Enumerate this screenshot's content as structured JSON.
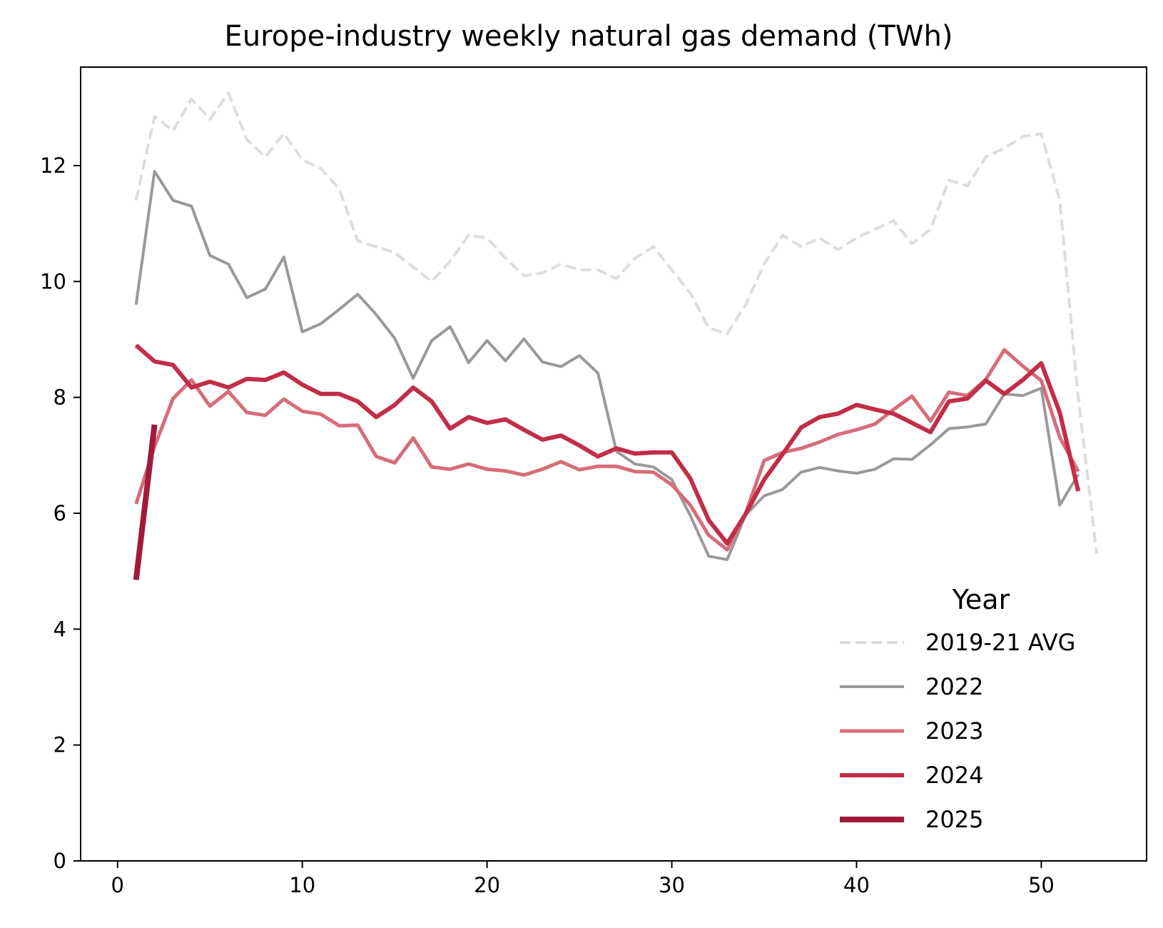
{
  "chart_data": {
    "type": "line",
    "title": "Europe-industry weekly natural gas demand (TWh)",
    "xlabel": "",
    "ylabel": "",
    "xlim": [
      -2,
      55.7
    ],
    "ylim": [
      0,
      13.7
    ],
    "xticks": [
      0,
      10,
      20,
      30,
      40,
      50
    ],
    "yticks": [
      0,
      2,
      4,
      6,
      8,
      10,
      12
    ],
    "grid": false,
    "legend": {
      "title": "Year",
      "position": "lower-right"
    },
    "series": [
      {
        "name": "2019-21 AVG",
        "color": "#dddddd",
        "dashed": true,
        "width": 4,
        "x": [
          1,
          2,
          3,
          4,
          5,
          6,
          7,
          8,
          9,
          10,
          11,
          12,
          13,
          14,
          15,
          16,
          17,
          18,
          19,
          20,
          21,
          22,
          23,
          24,
          25,
          26,
          27,
          28,
          29,
          30,
          31,
          32,
          33,
          34,
          35,
          36,
          37,
          38,
          39,
          40,
          41,
          42,
          43,
          44,
          45,
          46,
          47,
          48,
          49,
          50,
          51,
          52,
          53
        ],
        "y": [
          11.4,
          12.85,
          12.6,
          13.15,
          12.8,
          13.25,
          12.45,
          12.15,
          12.55,
          12.1,
          11.95,
          11.6,
          10.7,
          10.6,
          10.5,
          10.25,
          10.0,
          10.35,
          10.8,
          10.75,
          10.4,
          10.1,
          10.15,
          10.3,
          10.2,
          10.2,
          10.05,
          10.4,
          10.6,
          10.2,
          9.8,
          9.2,
          9.1,
          9.6,
          10.3,
          10.8,
          10.6,
          10.75,
          10.55,
          10.75,
          10.9,
          11.05,
          10.65,
          10.9,
          11.75,
          11.65,
          12.15,
          12.3,
          12.5,
          12.55,
          11.4,
          8.0,
          5.3
        ]
      },
      {
        "name": "2022",
        "color": "#999999",
        "dashed": false,
        "width": 4,
        "x": [
          1,
          2,
          3,
          4,
          5,
          6,
          7,
          8,
          9,
          10,
          11,
          12,
          13,
          14,
          15,
          16,
          17,
          18,
          19,
          20,
          21,
          22,
          23,
          24,
          25,
          26,
          27,
          28,
          29,
          30,
          31,
          32,
          33,
          34,
          35,
          36,
          37,
          38,
          39,
          40,
          41,
          42,
          43,
          44,
          45,
          46,
          47,
          48,
          49,
          50,
          51,
          52
        ],
        "y": [
          9.6,
          11.9,
          11.4,
          11.3,
          10.45,
          10.3,
          9.72,
          9.87,
          10.42,
          9.13,
          9.27,
          9.52,
          9.78,
          9.43,
          9.02,
          8.33,
          8.98,
          9.22,
          8.6,
          8.98,
          8.63,
          9.01,
          8.61,
          8.53,
          8.72,
          8.42,
          7.07,
          6.85,
          6.8,
          6.58,
          5.96,
          5.26,
          5.2,
          5.97,
          6.3,
          6.41,
          6.71,
          6.79,
          6.73,
          6.69,
          6.76,
          6.94,
          6.93,
          7.18,
          7.46,
          7.49,
          7.54,
          8.06,
          8.03,
          8.16,
          6.14,
          6.67
        ]
      },
      {
        "name": "2023",
        "color": "#d66d79",
        "dashed": false,
        "width": 5,
        "x": [
          1,
          2,
          3,
          4,
          5,
          6,
          7,
          8,
          9,
          10,
          11,
          12,
          13,
          14,
          15,
          16,
          17,
          18,
          19,
          20,
          21,
          22,
          23,
          24,
          25,
          26,
          27,
          28,
          29,
          30,
          31,
          32,
          33,
          34,
          35,
          36,
          37,
          38,
          39,
          40,
          41,
          42,
          43,
          44,
          45,
          46,
          47,
          48,
          49,
          50,
          51,
          52
        ],
        "y": [
          6.16,
          7.15,
          7.98,
          8.3,
          7.85,
          8.1,
          7.74,
          7.69,
          7.97,
          7.76,
          7.71,
          7.51,
          7.52,
          6.98,
          6.87,
          7.3,
          6.8,
          6.76,
          6.85,
          6.76,
          6.73,
          6.66,
          6.76,
          6.89,
          6.75,
          6.81,
          6.81,
          6.72,
          6.71,
          6.49,
          6.14,
          5.62,
          5.37,
          6.0,
          6.91,
          7.05,
          7.12,
          7.23,
          7.36,
          7.44,
          7.54,
          7.79,
          8.02,
          7.59,
          8.09,
          8.03,
          8.31,
          8.82,
          8.54,
          8.29,
          7.31,
          6.72
        ]
      },
      {
        "name": "2024",
        "color": "#c22d47",
        "dashed": false,
        "width": 6,
        "x": [
          1,
          2,
          3,
          4,
          5,
          6,
          7,
          8,
          9,
          10,
          11,
          12,
          13,
          14,
          15,
          16,
          17,
          18,
          19,
          20,
          21,
          22,
          23,
          24,
          25,
          26,
          27,
          28,
          29,
          30,
          31,
          32,
          33,
          34,
          35,
          36,
          37,
          38,
          39,
          40,
          41,
          42,
          43,
          44,
          45,
          46,
          47,
          48,
          49,
          50,
          51,
          52
        ],
        "y": [
          8.9,
          8.62,
          8.56,
          8.17,
          8.27,
          8.17,
          8.32,
          8.3,
          8.43,
          8.22,
          8.06,
          8.06,
          7.93,
          7.66,
          7.87,
          8.17,
          7.93,
          7.46,
          7.66,
          7.56,
          7.62,
          7.44,
          7.27,
          7.34,
          7.17,
          6.98,
          7.12,
          7.03,
          7.05,
          7.05,
          6.6,
          5.88,
          5.48,
          5.99,
          6.58,
          7.02,
          7.48,
          7.66,
          7.72,
          7.87,
          7.79,
          7.72,
          7.56,
          7.4,
          7.93,
          7.98,
          8.29,
          8.06,
          8.3,
          8.59,
          7.74,
          6.38
        ]
      },
      {
        "name": "2025",
        "color": "#a21a3a",
        "dashed": false,
        "width": 8,
        "x": [
          1,
          2
        ],
        "y": [
          4.85,
          7.53
        ]
      }
    ]
  }
}
